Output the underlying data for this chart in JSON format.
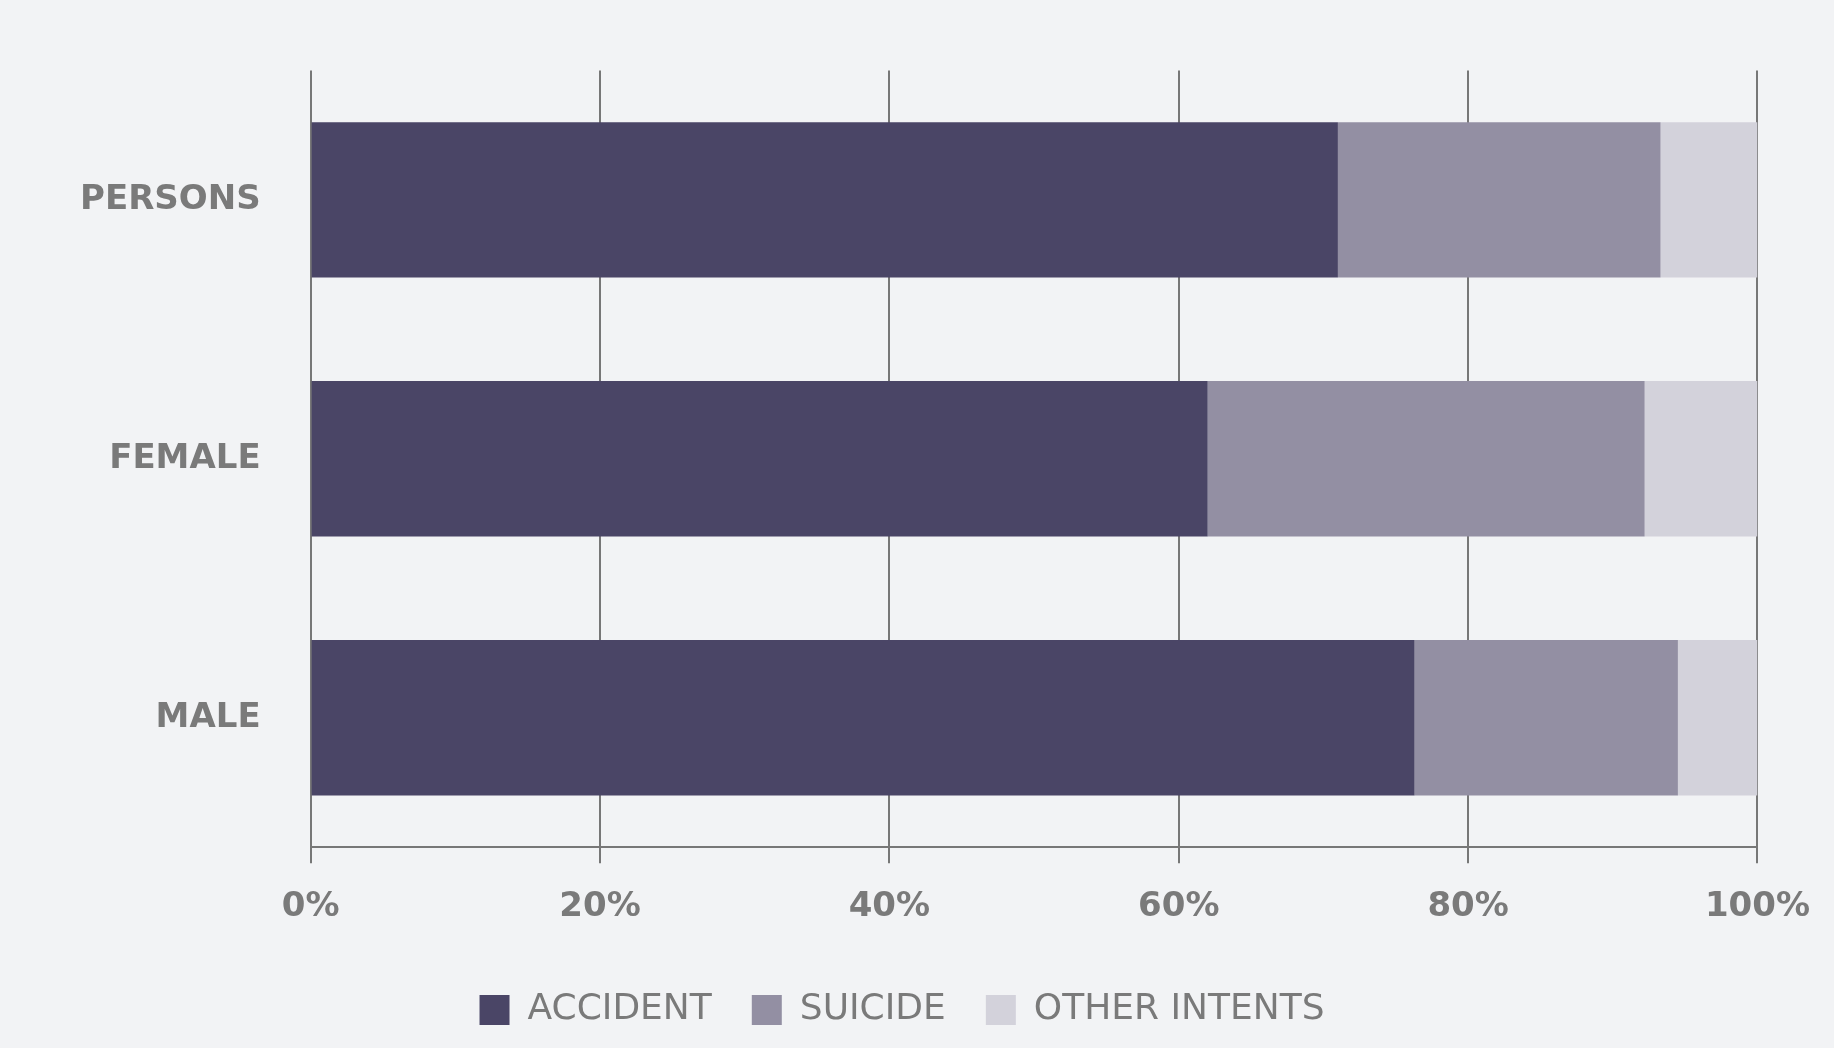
{
  "chart_data": {
    "type": "bar",
    "orientation": "horizontal",
    "stacked": true,
    "categories": [
      "PERSONS",
      "FEMALE",
      "MALE"
    ],
    "series": [
      {
        "name": "ACCIDENT",
        "color": "#4a4566",
        "values": [
          71.0,
          62.0,
          76.3
        ]
      },
      {
        "name": "SUICIDE",
        "color": "#938fa3",
        "values": [
          22.3,
          30.2,
          18.2
        ]
      },
      {
        "name": "OTHER INTENTS",
        "color": "#d3d2db",
        "values": [
          6.7,
          7.8,
          5.5
        ]
      }
    ],
    "xlim": [
      0,
      100
    ],
    "xticks": [
      {
        "value": 0,
        "label": "0%"
      },
      {
        "value": 20,
        "label": "20%"
      },
      {
        "value": 40,
        "label": "40%"
      },
      {
        "value": 60,
        "label": "60%"
      },
      {
        "value": 80,
        "label": "80%"
      },
      {
        "value": 100,
        "label": "100%"
      }
    ],
    "grid": "x",
    "legend": "bottom"
  }
}
